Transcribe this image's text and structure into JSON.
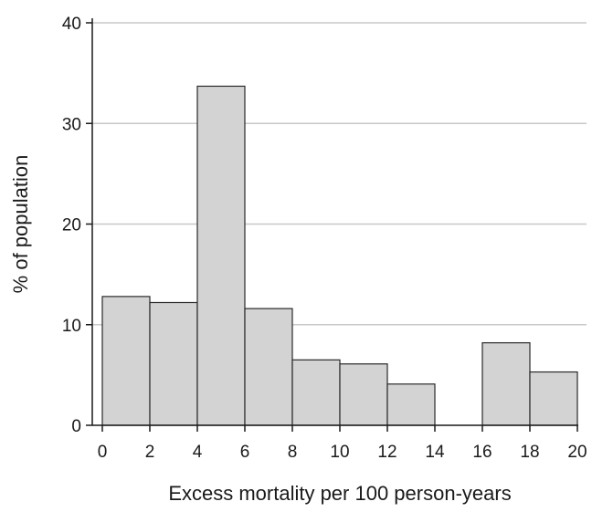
{
  "chart_data": {
    "type": "bar",
    "bins": [
      {
        "x0": 0,
        "x1": 2,
        "value": 12.8
      },
      {
        "x0": 2,
        "x1": 4,
        "value": 12.2
      },
      {
        "x0": 4,
        "x1": 6,
        "value": 33.7
      },
      {
        "x0": 6,
        "x1": 8,
        "value": 11.6
      },
      {
        "x0": 8,
        "x1": 10,
        "value": 6.5
      },
      {
        "x0": 10,
        "x1": 12,
        "value": 6.1
      },
      {
        "x0": 12,
        "x1": 14,
        "value": 4.1
      },
      {
        "x0": 14,
        "x1": 16,
        "value": 0
      },
      {
        "x0": 16,
        "x1": 18,
        "value": 8.2
      },
      {
        "x0": 18,
        "x1": 20,
        "value": 5.3
      }
    ],
    "xlabel": "Excess mortality per 100 person-years",
    "ylabel": "% of population",
    "xlim": [
      0,
      20
    ],
    "ylim": [
      0,
      40
    ],
    "xticks": [
      0,
      2,
      4,
      6,
      8,
      10,
      12,
      14,
      16,
      18,
      20
    ],
    "yticks": [
      0,
      10,
      20,
      30,
      40
    ],
    "grid": "horizontal",
    "bar_color": "#d3d3d3",
    "bar_edge_color": "#2a2a2a"
  }
}
